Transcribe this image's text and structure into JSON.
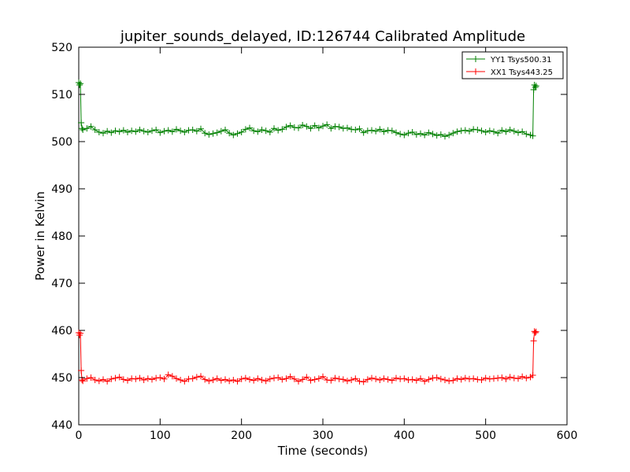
{
  "chart_data": {
    "type": "line",
    "title": "jupiter_sounds_delayed, ID:126744 Calibrated Amplitude",
    "xlabel": "Time (seconds)",
    "ylabel": "Power in Kelvin",
    "xlim": [
      0,
      600
    ],
    "ylim": [
      440,
      520
    ],
    "xticks": [
      0,
      100,
      200,
      300,
      400,
      500,
      600
    ],
    "yticks": [
      440,
      450,
      460,
      470,
      480,
      490,
      500,
      510,
      520
    ],
    "grid": false,
    "legend_position": "top-right",
    "series": [
      {
        "name": "YY1 Tsys500.31",
        "color": "#008000",
        "marker": "+",
        "x": [
          0,
          1,
          2,
          3,
          4,
          5,
          10,
          15,
          20,
          25,
          30,
          35,
          40,
          45,
          50,
          55,
          60,
          65,
          70,
          75,
          80,
          85,
          90,
          95,
          100,
          105,
          110,
          115,
          120,
          125,
          130,
          135,
          140,
          145,
          150,
          155,
          160,
          165,
          170,
          175,
          180,
          185,
          190,
          195,
          200,
          205,
          210,
          215,
          220,
          225,
          230,
          235,
          240,
          245,
          250,
          255,
          260,
          265,
          270,
          275,
          280,
          285,
          290,
          295,
          300,
          305,
          310,
          315,
          320,
          325,
          330,
          335,
          340,
          345,
          350,
          355,
          360,
          365,
          370,
          375,
          380,
          385,
          390,
          395,
          400,
          405,
          410,
          415,
          420,
          425,
          430,
          435,
          440,
          445,
          450,
          455,
          460,
          465,
          470,
          475,
          480,
          485,
          490,
          495,
          500,
          505,
          510,
          515,
          520,
          525,
          530,
          535,
          540,
          545,
          550,
          555,
          558,
          559,
          560,
          561,
          562
        ],
        "y": [
          512.5,
          512.0,
          512.3,
          504.0,
          502.8,
          502.5,
          502.8,
          503.2,
          502.5,
          502.0,
          501.8,
          502.2,
          501.9,
          502.3,
          502.1,
          502.4,
          502.0,
          502.3,
          502.1,
          502.5,
          502.2,
          502.0,
          502.3,
          502.5,
          501.9,
          502.2,
          502.4,
          502.1,
          502.6,
          502.3,
          502.0,
          502.4,
          502.5,
          502.2,
          502.7,
          501.8,
          501.5,
          501.7,
          501.9,
          502.2,
          502.5,
          501.8,
          501.4,
          501.7,
          502.0,
          502.6,
          502.9,
          502.3,
          502.1,
          502.5,
          502.3,
          502.0,
          502.8,
          502.4,
          502.6,
          503.1,
          503.4,
          503.0,
          502.9,
          503.5,
          503.2,
          502.8,
          503.4,
          502.9,
          503.3,
          503.6,
          502.8,
          503.2,
          503.1,
          502.8,
          502.9,
          502.6,
          502.5,
          502.7,
          501.9,
          502.3,
          502.4,
          502.2,
          502.6,
          502.1,
          502.4,
          502.3,
          501.9,
          501.6,
          501.4,
          501.8,
          502.0,
          501.5,
          501.7,
          501.4,
          501.9,
          501.6,
          501.3,
          501.5,
          501.1,
          501.4,
          501.8,
          502.1,
          502.3,
          502.4,
          502.2,
          502.6,
          502.5,
          502.3,
          502.0,
          502.3,
          502.1,
          501.8,
          502.4,
          502.1,
          502.5,
          502.2,
          501.9,
          502.1,
          501.6,
          501.4,
          501.2,
          511.0,
          512.0,
          511.5,
          511.8
        ]
      },
      {
        "name": "XX1 Tsys443.25",
        "color": "#ff0000",
        "marker": "+",
        "x": [
          0,
          1,
          2,
          3,
          4,
          5,
          10,
          15,
          20,
          25,
          30,
          35,
          40,
          45,
          50,
          55,
          60,
          65,
          70,
          75,
          80,
          85,
          90,
          95,
          100,
          105,
          110,
          115,
          120,
          125,
          130,
          135,
          140,
          145,
          150,
          155,
          160,
          165,
          170,
          175,
          180,
          185,
          190,
          195,
          200,
          205,
          210,
          215,
          220,
          225,
          230,
          235,
          240,
          245,
          250,
          255,
          260,
          265,
          270,
          275,
          280,
          285,
          290,
          295,
          300,
          305,
          310,
          315,
          320,
          325,
          330,
          335,
          340,
          345,
          350,
          355,
          360,
          365,
          370,
          375,
          380,
          385,
          390,
          395,
          400,
          405,
          410,
          415,
          420,
          425,
          430,
          435,
          440,
          445,
          450,
          455,
          460,
          465,
          470,
          475,
          480,
          485,
          490,
          495,
          500,
          505,
          510,
          515,
          520,
          525,
          530,
          535,
          540,
          545,
          550,
          555,
          558,
          559,
          560,
          561,
          562
        ],
        "y": [
          459.5,
          459.0,
          459.4,
          451.5,
          449.5,
          449.3,
          449.8,
          450.0,
          449.5,
          449.3,
          449.6,
          449.2,
          449.7,
          449.9,
          450.1,
          449.6,
          449.4,
          449.8,
          449.7,
          449.9,
          449.5,
          449.8,
          449.6,
          449.9,
          450.0,
          449.7,
          450.6,
          450.3,
          449.8,
          449.5,
          449.2,
          449.7,
          449.8,
          450.1,
          450.3,
          449.6,
          449.3,
          449.5,
          449.8,
          449.4,
          449.6,
          449.3,
          449.5,
          449.2,
          449.7,
          449.9,
          449.6,
          449.4,
          449.8,
          449.5,
          449.3,
          449.7,
          449.9,
          450.0,
          449.6,
          449.8,
          450.2,
          449.7,
          449.2,
          449.6,
          450.1,
          449.4,
          449.6,
          449.8,
          450.2,
          449.5,
          449.4,
          449.9,
          449.7,
          449.6,
          449.3,
          449.5,
          449.8,
          449.2,
          449.1,
          449.6,
          449.9,
          449.7,
          449.5,
          449.8,
          449.6,
          449.4,
          449.9,
          449.7,
          449.8,
          449.5,
          449.6,
          449.4,
          449.8,
          449.2,
          449.6,
          449.9,
          450.0,
          449.7,
          449.5,
          449.3,
          449.4,
          449.8,
          449.6,
          449.9,
          449.7,
          449.8,
          449.6,
          449.5,
          449.9,
          449.7,
          449.8,
          449.9,
          450.0,
          449.7,
          450.1,
          449.9,
          449.8,
          450.2,
          449.9,
          450.1,
          450.5,
          457.8,
          459.8,
          459.5,
          459.7
        ]
      }
    ]
  }
}
